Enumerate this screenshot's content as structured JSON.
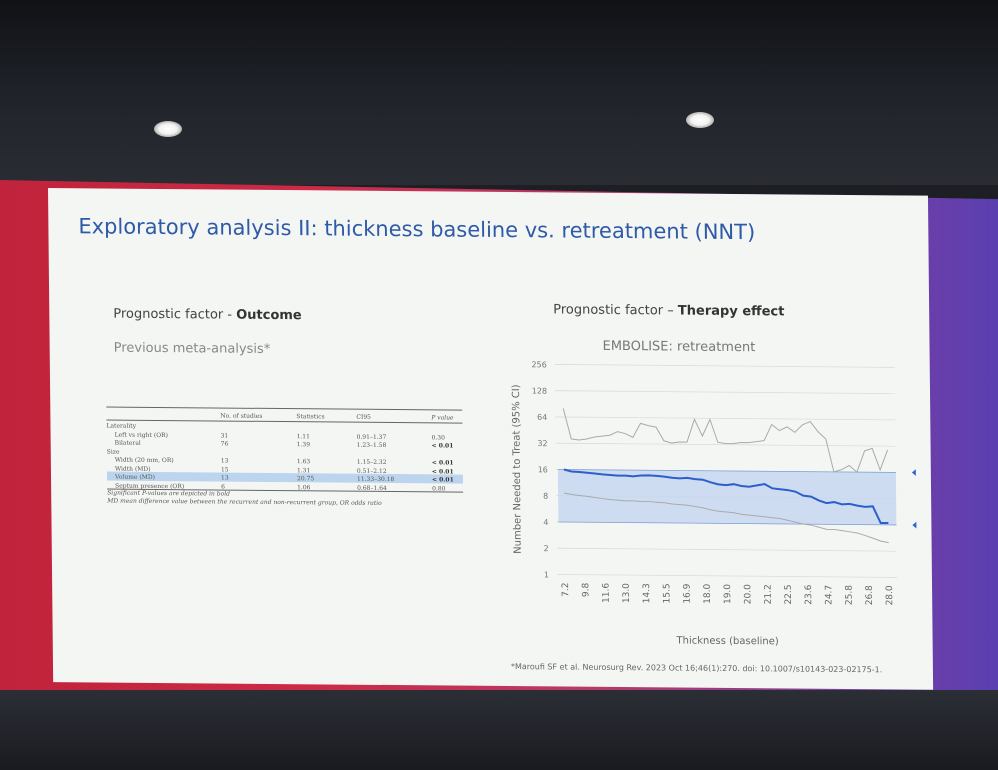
{
  "slide": {
    "title": "Exploratory analysis II: thickness baseline vs. retreatment (NNT)",
    "left_heading_prefix": "Prognostic factor - ",
    "left_heading_bold": "Outcome",
    "left_subheading": "Previous meta-analysis*",
    "right_heading_prefix": "Prognostic factor – ",
    "right_heading_bold": "Therapy effect",
    "citation": "*Maroufi SF et al. Neurosurg Rev. 2023 Oct 16;46(1):270. doi: 10.1007/s10143-023-02175-1."
  },
  "table": {
    "headers": [
      "",
      "No. of studies",
      "Statistics",
      "CI95",
      "P value"
    ],
    "rows": [
      {
        "label": "Laterality",
        "n": "",
        "stat": "",
        "ci": "",
        "p": "",
        "indent": false,
        "bold_p": false,
        "highlight": false
      },
      {
        "label": "Left vs right (OR)",
        "n": "31",
        "stat": "1.11",
        "ci": "0.91–1.37",
        "p": "0.30",
        "indent": true,
        "bold_p": false,
        "highlight": false
      },
      {
        "label": "Bilateral",
        "n": "76",
        "stat": "1.39",
        "ci": "1.23–1.58",
        "p": "< 0.01",
        "indent": true,
        "bold_p": true,
        "highlight": false
      },
      {
        "label": "Size",
        "n": "",
        "stat": "",
        "ci": "",
        "p": "",
        "indent": false,
        "bold_p": false,
        "highlight": false
      },
      {
        "label": "Width (20 mm, OR)",
        "n": "13",
        "stat": "1.63",
        "ci": "1.15–2.32",
        "p": "< 0.01",
        "indent": true,
        "bold_p": true,
        "highlight": false
      },
      {
        "label": "Width (MD)",
        "n": "15",
        "stat": "1.31",
        "ci": "0.51–2.12",
        "p": "< 0.01",
        "indent": true,
        "bold_p": true,
        "highlight": false
      },
      {
        "label": "Volume (MD)",
        "n": "13",
        "stat": "20.75",
        "ci": "11.33–30.18",
        "p": "< 0.01",
        "indent": true,
        "bold_p": true,
        "highlight": true
      },
      {
        "label": "Septum presence (OR)",
        "n": "6",
        "stat": "1.06",
        "ci": "0.68–1.64",
        "p": "0.80",
        "indent": true,
        "bold_p": false,
        "highlight": false
      }
    ],
    "notes": [
      "Significant P-values are depicted in bold",
      "MD mean difference value between the recurrent and non-recurrent group, OR odds ratio"
    ]
  },
  "chart_data": {
    "type": "line",
    "title": "EMBOLISE: retreatment",
    "xlabel": "Thickness (baseline)",
    "ylabel": "Number Needed to Treat (95% CI)",
    "yscale": "log2",
    "ylim": [
      1,
      256
    ],
    "yticks": [
      1,
      2,
      4,
      8,
      16,
      32,
      64,
      128,
      256
    ],
    "x_ticks": [
      "7.2",
      "9.8",
      "11.6",
      "13.0",
      "14.3",
      "15.5",
      "16.9",
      "18.0",
      "19.0",
      "20.0",
      "21.2",
      "22.5",
      "23.6",
      "24.7",
      "25.8",
      "26.8",
      "28.0"
    ],
    "grid": true,
    "shaded_band": [
      4,
      16
    ],
    "series": [
      {
        "role": "upper",
        "color": "#aaaaaa",
        "values": [
          80,
          36,
          35,
          36,
          38,
          39,
          40,
          44,
          42,
          38,
          55,
          52,
          50,
          35,
          33,
          34,
          34,
          62,
          40,
          62,
          34,
          33,
          33,
          34,
          34,
          35,
          36,
          55,
          47,
          52,
          45,
          55,
          60,
          46,
          38,
          16,
          17,
          19,
          16,
          28,
          30,
          17,
          29
        ]
      },
      {
        "role": "estimate",
        "color": "#2b5fcc",
        "values": [
          16,
          15.2,
          15,
          14.8,
          14.5,
          14.2,
          14,
          13.8,
          13.8,
          13.6,
          13.9,
          14,
          13.8,
          13.6,
          13.2,
          13,
          13.2,
          12.8,
          12.6,
          11.8,
          11.2,
          11,
          11.3,
          10.8,
          10.6,
          11,
          11.4,
          10.2,
          10,
          9.8,
          9.4,
          8.5,
          8.3,
          7.5,
          7,
          7.2,
          6.8,
          6.9,
          6.6,
          6.4,
          6.5,
          4.2,
          4.2
        ]
      },
      {
        "role": "lower",
        "color": "#aaaaaa",
        "values": [
          8.6,
          8.3,
          8.1,
          7.9,
          7.7,
          7.5,
          7.3,
          7.2,
          7.1,
          7.1,
          7.0,
          7.0,
          6.9,
          6.8,
          6.6,
          6.5,
          6.4,
          6.2,
          6.0,
          5.7,
          5.5,
          5.4,
          5.3,
          5.1,
          5.0,
          4.9,
          4.8,
          4.7,
          4.6,
          4.4,
          4.2,
          4.0,
          3.9,
          3.7,
          3.5,
          3.5,
          3.4,
          3.3,
          3.2,
          3.0,
          2.8,
          2.6,
          2.5
        ]
      }
    ],
    "arrow_levels": [
      16,
      4
    ],
    "arrow_color": "#2f62d6"
  }
}
